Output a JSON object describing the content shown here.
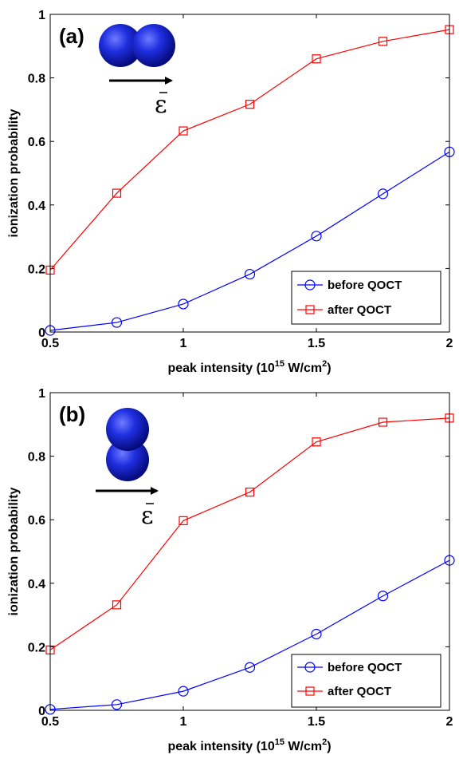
{
  "chart_data": [
    {
      "type": "line",
      "panel_label": "(a)",
      "x": [
        0.5,
        0.75,
        1.0,
        1.25,
        1.5,
        1.75,
        2.0
      ],
      "series": [
        {
          "name": "before QOCT",
          "values": [
            0.005,
            0.03,
            0.088,
            0.182,
            0.302,
            0.435,
            0.567
          ],
          "color": "#0000ff",
          "marker": "circle"
        },
        {
          "name": "after QOCT",
          "values": [
            0.195,
            0.437,
            0.633,
            0.717,
            0.86,
            0.915,
            0.952
          ],
          "color": "#ff0000",
          "marker": "square"
        }
      ],
      "xlabel": "peak intensity (10",
      "xlabel_sup": "15",
      "xlabel_tail": " W/cm",
      "xlabel_sup2": "2",
      "xlabel_close": ")",
      "ylabel": "ionization probability",
      "xlim": [
        0.5,
        2.0
      ],
      "ylim": [
        0,
        1
      ],
      "xticks": [
        "0.5",
        "1",
        "1.5",
        "2"
      ],
      "yticks": [
        "0",
        "0.2",
        "0.4",
        "0.6",
        "0.8",
        "1"
      ],
      "legend_position": "bottom-right",
      "inset": {
        "molecule": "diatomic-horizontal",
        "field_symbol": "ε"
      }
    },
    {
      "type": "line",
      "panel_label": "(b)",
      "x": [
        0.5,
        0.75,
        1.0,
        1.25,
        1.5,
        1.75,
        2.0
      ],
      "series": [
        {
          "name": "before QOCT",
          "values": [
            0.003,
            0.018,
            0.06,
            0.135,
            0.24,
            0.36,
            0.472
          ],
          "color": "#0000ff",
          "marker": "circle"
        },
        {
          "name": "after QOCT",
          "values": [
            0.19,
            0.332,
            0.597,
            0.687,
            0.845,
            0.907,
            0.92
          ],
          "color": "#ff0000",
          "marker": "square"
        }
      ],
      "xlabel": "peak intensity (10",
      "xlabel_sup": "15",
      "xlabel_tail": " W/cm",
      "xlabel_sup2": "2",
      "xlabel_close": ")",
      "ylabel": "ionization probability",
      "xlim": [
        0.5,
        2.0
      ],
      "ylim": [
        0,
        1
      ],
      "xticks": [
        "0.5",
        "1",
        "1.5",
        "2"
      ],
      "yticks": [
        "0",
        "0.2",
        "0.4",
        "0.6",
        "0.8",
        "1"
      ],
      "legend_position": "bottom-right",
      "inset": {
        "molecule": "diatomic-vertical",
        "field_symbol": "ε"
      }
    }
  ]
}
